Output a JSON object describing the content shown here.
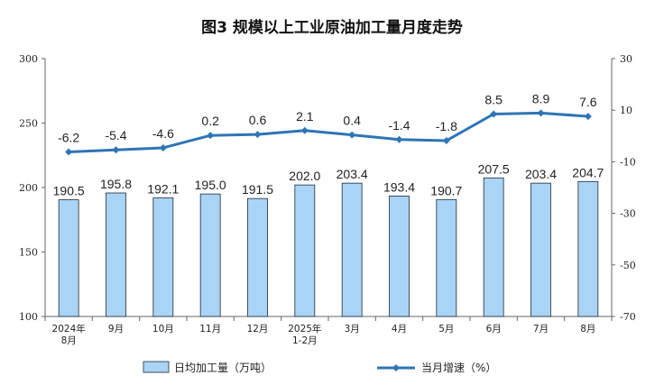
{
  "chart_data": {
    "type": "bar+line",
    "title": "图3  规模以上工业原油加工量月度走势",
    "categories": [
      [
        "2024年",
        "8月"
      ],
      [
        "9月"
      ],
      [
        "10月"
      ],
      [
        "11月"
      ],
      [
        "12月"
      ],
      [
        "2025年",
        "1-2月"
      ],
      [
        "3月"
      ],
      [
        "4月"
      ],
      [
        "5月"
      ],
      [
        "6月"
      ],
      [
        "7月"
      ],
      [
        "8月"
      ]
    ],
    "series": [
      {
        "name": "日均加工量（万吨）",
        "type": "bar",
        "axis": "left",
        "values": [
          190.5,
          195.8,
          192.1,
          195.0,
          191.5,
          202.0,
          203.4,
          193.4,
          190.7,
          207.5,
          203.4,
          204.7
        ],
        "labels": [
          "190.5",
          "195.8",
          "192.1",
          "195.0",
          "191.5",
          "202.0",
          "203.4",
          "193.4",
          "190.7",
          "207.5",
          "203.4",
          "204.7"
        ],
        "color": "#a9d4f5",
        "stroke": "#1f2a36"
      },
      {
        "name": "当月增速（%）",
        "type": "line",
        "axis": "right",
        "values": [
          -6.2,
          -5.4,
          -4.6,
          0.2,
          0.6,
          2.1,
          0.4,
          -1.4,
          -1.8,
          8.5,
          8.9,
          7.6
        ],
        "labels": [
          "-6.2",
          "-5.4",
          "-4.6",
          "0.2",
          "0.6",
          "2.1",
          "0.4",
          "-1.4",
          "-1.8",
          "8.5",
          "8.9",
          "7.6"
        ],
        "color": "#2e75b6"
      }
    ],
    "y_left": {
      "min": 100,
      "max": 300,
      "ticks": [
        "100",
        "150",
        "200",
        "250",
        "300"
      ]
    },
    "y_right": {
      "min": -70,
      "max": 30,
      "ticks": [
        "-70",
        "-50",
        "-30",
        "-10",
        "10",
        "30"
      ]
    },
    "grid": false,
    "legend": "bottom"
  }
}
